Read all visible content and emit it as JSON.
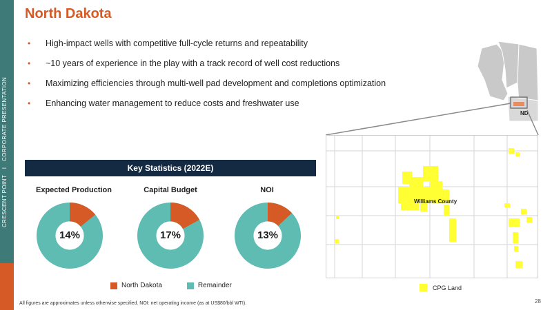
{
  "sidebar": {
    "left_text": "CRESCENT POINT",
    "separator": "I",
    "right_text": "CORPORATE PRESENTATION"
  },
  "slide": {
    "title": "North Dakota"
  },
  "bullets": [
    "High-impact wells with competitive full-cycle returns and repeatability",
    "~10 years of experience in the play with a track record of well cost reductions",
    "Maximizing efficiencies through multi-well pad development and completions optimization",
    "Enhancing water management to reduce costs and freshwater use"
  ],
  "key_stats": {
    "header": "Key Statistics (2022E)",
    "legend": [
      {
        "label": "North Dakota",
        "color": "#d65a26"
      },
      {
        "label": "Remainder",
        "color": "#5fbcb2"
      }
    ]
  },
  "chart_data": [
    {
      "type": "pie",
      "title": "Expected Production",
      "labels": [
        "North Dakota",
        "Remainder"
      ],
      "values": [
        14,
        86
      ],
      "center_label": "14%"
    },
    {
      "type": "pie",
      "title": "Capital Budget",
      "labels": [
        "North Dakota",
        "Remainder"
      ],
      "values": [
        17,
        83
      ],
      "center_label": "17%"
    },
    {
      "type": "pie",
      "title": "NOI",
      "labels": [
        "North Dakota",
        "Remainder"
      ],
      "values": [
        13,
        87
      ],
      "center_label": "13%"
    }
  ],
  "map": {
    "county_label": "Williams County",
    "state_label": "ND",
    "legend_label": "CPG Land",
    "land_color": "#ffff33"
  },
  "footnote": "All figures are approximates unless otherwise specified. NOI: net operating income (as at US$80/bbl WTI).",
  "page_number": "28"
}
